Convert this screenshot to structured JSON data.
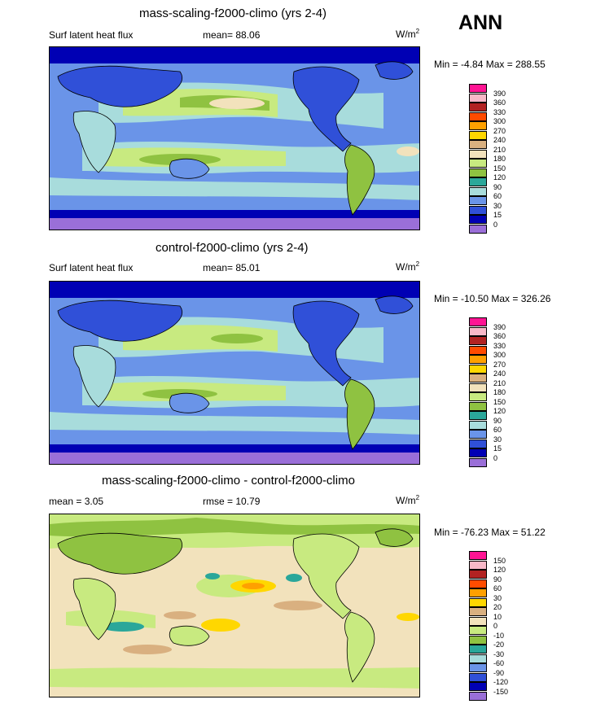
{
  "season": "ANN",
  "colors": {
    "abs": [
      "#9a6fd8",
      "#0000b4",
      "#3050d8",
      "#6a94e8",
      "#a8dcdc",
      "#2aa79a",
      "#8fc241",
      "#c8ea80",
      "#f2e2bc",
      "#d9b080",
      "#ffd700",
      "#ffa000",
      "#ff4b00",
      "#b22222",
      "#f8b8c8",
      "#ff1493"
    ],
    "diff": [
      "#9a6fd8",
      "#0000b4",
      "#3050d8",
      "#6a94e8",
      "#a8dcdc",
      "#2aa79a",
      "#8fc241",
      "#c8ea80",
      "#f2e2bc",
      "#d9b080",
      "#ffd700",
      "#ffa000",
      "#ff4b00",
      "#b22222",
      "#f8b8c8",
      "#ff1493"
    ]
  },
  "panels": [
    {
      "title": "mass-scaling-f2000-climo (yrs 2-4)",
      "left_label": "Surf latent heat flux",
      "stat_label": "mean=",
      "stat_value": "88.06",
      "units_base": "W/m",
      "units_exp": "2",
      "minmax": "Min =  -4.84 Max = 288.55",
      "levels": [
        "390",
        "360",
        "330",
        "300",
        "270",
        "240",
        "210",
        "180",
        "150",
        "120",
        "90",
        "60",
        "30",
        "15",
        "0"
      ],
      "palette": "abs"
    },
    {
      "title": "control-f2000-climo (yrs 2-4)",
      "left_label": "Surf latent heat flux",
      "stat_label": "mean=",
      "stat_value": "85.01",
      "units_base": "W/m",
      "units_exp": "2",
      "minmax": "Min = -10.50 Max = 326.26",
      "levels": [
        "390",
        "360",
        "330",
        "300",
        "270",
        "240",
        "210",
        "180",
        "150",
        "120",
        "90",
        "60",
        "30",
        "15",
        "0"
      ],
      "palette": "abs"
    },
    {
      "title": "mass-scaling-f2000-climo - control-f2000-climo",
      "left_label": "mean =   3.05",
      "stat_label": "rmse =",
      "stat_value": "10.79",
      "units_base": "W/m",
      "units_exp": "2",
      "minmax": "Min = -76.23 Max =  51.22",
      "levels": [
        "150",
        "120",
        "90",
        "60",
        "30",
        "20",
        "10",
        "0",
        "-10",
        "-20",
        "-30",
        "-60",
        "-90",
        "-120",
        "-150"
      ],
      "palette": "diff"
    }
  ]
}
